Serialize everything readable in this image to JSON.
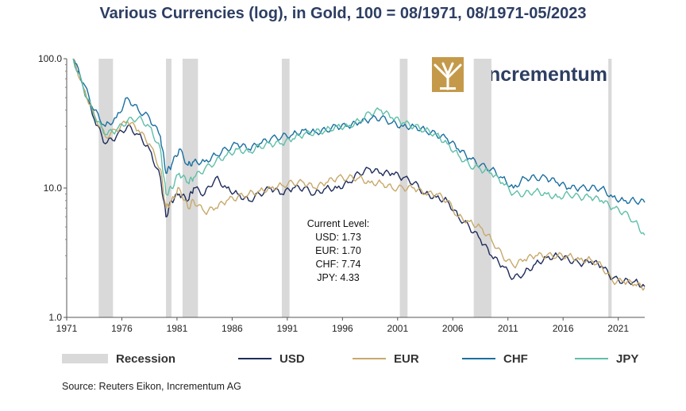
{
  "title": "Various Currencies (log), in Gold, 100 = 08/1971, 08/1971-05/2023",
  "brand": {
    "name": "incrementum",
    "logo_icon": "tree-logo-icon",
    "logo_color": "#b48a3c",
    "text_color": "#2d3e63"
  },
  "source": "Source: Reuters Eikon, Incrementum AG",
  "annotation": {
    "heading": "Current Level:",
    "lines": [
      "USD: 1.73",
      "EUR: 1.70",
      "CHF: 7.74",
      "JPY: 4.33"
    ]
  },
  "legend": [
    {
      "name": "Recession",
      "type": "band",
      "color": "#d9d9d9"
    },
    {
      "name": "USD",
      "type": "line",
      "color": "#1f2c5c"
    },
    {
      "name": "EUR",
      "type": "line",
      "color": "#c7a96b"
    },
    {
      "name": "CHF",
      "type": "line",
      "color": "#1a6fa0"
    },
    {
      "name": "JPY",
      "type": "line",
      "color": "#5fbfa8"
    }
  ],
  "chart_data": {
    "type": "line",
    "title": "Various Currencies (log), in Gold, 100 = 08/1971, 08/1971-05/2023",
    "xlabel": "",
    "ylabel": "",
    "yscale": "log",
    "xlim": [
      1971,
      2023.4
    ],
    "ylim": [
      1,
      100
    ],
    "x_ticks": [
      "1971",
      "1976",
      "1981",
      "1986",
      "1991",
      "1996",
      "2001",
      "2006",
      "2011",
      "2016",
      "2021"
    ],
    "x_tick_values": [
      1971,
      1976,
      1981,
      1986,
      1991,
      1996,
      2001,
      2006,
      2011,
      2016,
      2021
    ],
    "y_ticks": [
      "1.0",
      "10.0",
      "100.0"
    ],
    "y_tick_values": [
      1,
      10,
      100
    ],
    "grid": false,
    "legend_position": "bottom",
    "recessions": [
      [
        1973.9,
        1975.2
      ],
      [
        1980.0,
        1980.5
      ],
      [
        1981.5,
        1982.9
      ],
      [
        1990.5,
        1991.2
      ],
      [
        2001.2,
        2001.9
      ],
      [
        2007.9,
        2009.5
      ],
      [
        2020.1,
        2020.4
      ]
    ],
    "series": [
      {
        "name": "USD",
        "color": "#1f2c5c",
        "x": [
          1971.6,
          1972.5,
          1973.5,
          1974.5,
          1975.5,
          1976.5,
          1977.5,
          1978.5,
          1979.5,
          1980.0,
          1980.5,
          1981.2,
          1982.0,
          1982.5,
          1983.5,
          1984.5,
          1985.5,
          1986.5,
          1987.5,
          1988.5,
          1989.5,
          1990.5,
          1991.5,
          1992.5,
          1993.5,
          1994.5,
          1995.5,
          1996.5,
          1997.5,
          1998.5,
          1999.5,
          2000.5,
          2001.5,
          2002.5,
          2003.5,
          2004.5,
          2005.5,
          2006.5,
          2007.5,
          2008.5,
          2009.5,
          2010.5,
          2011.5,
          2012.5,
          2013.5,
          2014.5,
          2015.5,
          2016.5,
          2017.5,
          2018.5,
          2019.5,
          2020.5,
          2021.5,
          2022.5,
          2023.4
        ],
        "values": [
          100,
          60,
          34,
          22,
          25,
          30,
          26,
          20,
          12,
          6,
          8,
          9,
          8,
          10,
          9,
          12,
          10,
          9,
          8,
          9,
          10,
          9,
          10,
          10,
          9,
          10,
          10,
          11,
          13,
          14,
          13,
          13,
          12,
          11,
          9,
          8.5,
          8,
          6,
          5,
          4,
          3,
          2.5,
          2,
          2.2,
          2.6,
          2.9,
          3,
          2.8,
          2.6,
          2.7,
          2.5,
          2.0,
          1.9,
          1.9,
          1.73
        ]
      },
      {
        "name": "EUR",
        "color": "#c7a96b",
        "x": [
          1971.6,
          1972.5,
          1973.5,
          1974.5,
          1975.5,
          1976.5,
          1977.5,
          1978.5,
          1979.5,
          1980.0,
          1980.5,
          1981.2,
          1982.0,
          1982.5,
          1983.5,
          1984.5,
          1985.5,
          1986.5,
          1987.5,
          1988.5,
          1989.5,
          1990.5,
          1991.5,
          1992.5,
          1993.5,
          1994.5,
          1995.5,
          1996.5,
          1997.5,
          1998.5,
          1999.5,
          2000.5,
          2001.5,
          2002.5,
          2003.5,
          2004.5,
          2005.5,
          2006.5,
          2007.5,
          2008.5,
          2009.5,
          2010.5,
          2011.5,
          2012.5,
          2013.5,
          2014.5,
          2015.5,
          2016.5,
          2017.5,
          2018.5,
          2019.5,
          2020.5,
          2021.5,
          2022.5,
          2023.4
        ],
        "values": [
          100,
          60,
          37,
          25,
          28,
          33,
          28,
          22,
          14,
          7,
          8,
          10,
          7,
          8,
          6.5,
          7,
          8,
          8.5,
          9,
          9.5,
          10,
          10.5,
          11,
          11,
          10,
          11,
          12,
          12,
          12,
          11,
          11,
          10,
          10,
          10,
          9,
          9,
          8,
          6,
          5.5,
          5,
          4,
          3,
          2.5,
          2.8,
          3,
          3,
          3,
          3,
          2.8,
          2.8,
          2.5,
          1.9,
          1.9,
          1.8,
          1.7
        ]
      },
      {
        "name": "CHF",
        "color": "#1a6fa0",
        "x": [
          1971.6,
          1972.5,
          1973.5,
          1974.5,
          1975.5,
          1976.5,
          1977.5,
          1978.5,
          1979.5,
          1980.0,
          1980.5,
          1981.2,
          1982.0,
          1982.5,
          1983.5,
          1984.5,
          1985.5,
          1986.5,
          1987.5,
          1988.5,
          1989.5,
          1990.5,
          1991.5,
          1992.5,
          1993.5,
          1994.5,
          1995.5,
          1996.5,
          1997.5,
          1998.5,
          1999.5,
          2000.5,
          2001.5,
          2002.5,
          2003.5,
          2004.5,
          2005.5,
          2006.5,
          2007.5,
          2008.5,
          2009.5,
          2010.5,
          2011.5,
          2012.5,
          2013.5,
          2014.5,
          2015.5,
          2016.5,
          2017.5,
          2018.5,
          2019.5,
          2020.5,
          2021.5,
          2022.5,
          2023.4
        ],
        "values": [
          100,
          65,
          40,
          30,
          35,
          50,
          40,
          35,
          25,
          13,
          15,
          20,
          15,
          16,
          16,
          18,
          20,
          22,
          20,
          22,
          24,
          25,
          26,
          28,
          27,
          28,
          30,
          30,
          32,
          34,
          35,
          32,
          30,
          30,
          28,
          26,
          24,
          20,
          17,
          15,
          14,
          12,
          10,
          12,
          12,
          12,
          11,
          10,
          10,
          10,
          10,
          8.5,
          8,
          8,
          7.74
        ]
      },
      {
        "name": "JPY",
        "color": "#5fbfa8",
        "x": [
          1971.6,
          1972.5,
          1973.5,
          1974.5,
          1975.5,
          1976.5,
          1977.5,
          1978.5,
          1979.5,
          1980.0,
          1980.5,
          1981.2,
          1982.0,
          1982.5,
          1983.5,
          1984.5,
          1985.5,
          1986.5,
          1987.5,
          1988.5,
          1989.5,
          1990.5,
          1991.5,
          1992.5,
          1993.5,
          1994.5,
          1995.5,
          1996.5,
          1997.5,
          1998.5,
          1999.5,
          2000.5,
          2001.5,
          2002.5,
          2003.5,
          2004.5,
          2005.5,
          2006.5,
          2007.5,
          2008.5,
          2009.5,
          2010.5,
          2011.5,
          2012.5,
          2013.5,
          2014.5,
          2015.5,
          2016.5,
          2017.5,
          2018.5,
          2019.5,
          2020.5,
          2021.5,
          2022.5,
          2023.4
        ],
        "values": [
          100,
          60,
          36,
          26,
          28,
          33,
          35,
          30,
          20,
          9,
          10,
          13,
          11,
          12,
          14,
          16,
          18,
          20,
          19,
          21,
          22,
          22,
          24,
          26,
          27,
          28,
          30,
          30,
          33,
          38,
          40,
          35,
          32,
          30,
          28,
          26,
          22,
          18,
          15,
          14,
          13,
          11,
          9,
          9,
          9.5,
          9,
          8.5,
          9,
          8.5,
          8.5,
          8,
          7,
          6.5,
          5.5,
          4.33
        ]
      }
    ]
  }
}
